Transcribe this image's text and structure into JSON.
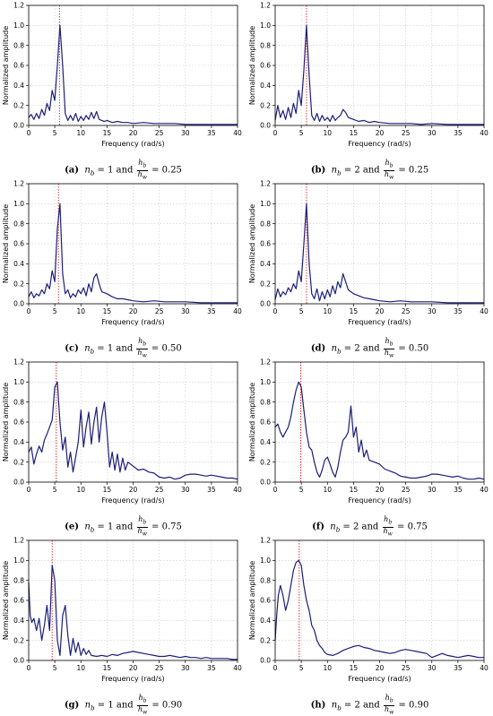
{
  "chart_data": [
    {
      "id": "a",
      "type": "line",
      "label": "(a)",
      "nb": "1",
      "ratio": "0.25",
      "xlabel": "Frequency (rad/s)",
      "ylabel": "Normalized amplitude",
      "xlim": [
        0,
        40
      ],
      "ylim": [
        0,
        1.2
      ],
      "xticks": [
        0,
        5,
        10,
        15,
        20,
        25,
        30,
        35,
        40
      ],
      "yticks": [
        "0.0",
        "0.2",
        "0.4",
        "0.6",
        "0.8",
        "1.0",
        "1.2"
      ],
      "grid": true,
      "peak_freq": 5.9,
      "x": [
        0,
        0.5,
        1,
        1.5,
        2,
        2.5,
        3,
        3.5,
        4,
        4.5,
        5,
        5.5,
        6,
        6.5,
        7,
        7.5,
        8,
        8.5,
        9,
        9.5,
        10,
        10.5,
        11,
        11.5,
        12,
        12.5,
        13,
        13.5,
        14,
        14.5,
        15,
        16,
        17,
        18,
        19,
        20,
        22,
        24,
        26,
        28,
        30,
        33,
        36,
        40
      ],
      "y": [
        0.08,
        0.11,
        0.06,
        0.12,
        0.07,
        0.16,
        0.1,
        0.22,
        0.15,
        0.35,
        0.25,
        0.6,
        1.0,
        0.6,
        0.12,
        0.05,
        0.1,
        0.05,
        0.12,
        0.04,
        0.09,
        0.05,
        0.1,
        0.06,
        0.13,
        0.07,
        0.14,
        0.06,
        0.05,
        0.04,
        0.05,
        0.03,
        0.04,
        0.03,
        0.03,
        0.02,
        0.03,
        0.02,
        0.02,
        0.02,
        0.01,
        0.01,
        0.01,
        0.01
      ]
    },
    {
      "id": "b",
      "type": "line",
      "label": "(b)",
      "nb": "2",
      "ratio": "0.25",
      "xlabel": "Frequency (rad/s)",
      "ylabel": "Normalized amplitude",
      "xlim": [
        0,
        40
      ],
      "ylim": [
        0,
        1.2
      ],
      "xticks": [
        0,
        5,
        10,
        15,
        20,
        25,
        30,
        35,
        40
      ],
      "yticks": [
        "0.0",
        "0.2",
        "0.4",
        "0.6",
        "0.8",
        "1.0",
        "1.2"
      ],
      "grid": true,
      "peak_freq": 6.0,
      "x": [
        0,
        0.5,
        1,
        1.5,
        2,
        2.5,
        3,
        3.5,
        4,
        4.5,
        5,
        5.5,
        6,
        6.5,
        7,
        7.5,
        8,
        8.5,
        9,
        9.5,
        10,
        10.5,
        11,
        11.5,
        12,
        12.5,
        13,
        13.5,
        14,
        15,
        16,
        17,
        18,
        19,
        20,
        22,
        24,
        26,
        28,
        30,
        33,
        36,
        40
      ],
      "y": [
        0.05,
        0.2,
        0.08,
        0.15,
        0.06,
        0.18,
        0.08,
        0.22,
        0.12,
        0.35,
        0.2,
        0.55,
        1.0,
        0.5,
        0.1,
        0.05,
        0.12,
        0.04,
        0.1,
        0.05,
        0.08,
        0.04,
        0.1,
        0.05,
        0.08,
        0.1,
        0.16,
        0.13,
        0.08,
        0.06,
        0.04,
        0.05,
        0.03,
        0.04,
        0.03,
        0.02,
        0.02,
        0.02,
        0.01,
        0.02,
        0.01,
        0.01,
        0.01
      ]
    },
    {
      "id": "c",
      "type": "line",
      "label": "(c)",
      "nb": "1",
      "ratio": "0.50",
      "xlabel": "Frequency (rad/s)",
      "ylabel": "Normalized amplitude",
      "xlim": [
        0,
        40
      ],
      "ylim": [
        0,
        1.2
      ],
      "xticks": [
        0,
        5,
        10,
        15,
        20,
        25,
        30,
        35,
        40
      ],
      "yticks": [
        "0.0",
        "0.2",
        "0.4",
        "0.6",
        "0.8",
        "1.0",
        "1.2"
      ],
      "grid": true,
      "peak_freq": 5.7,
      "x": [
        0,
        0.5,
        1,
        1.5,
        2,
        2.5,
        3,
        3.5,
        4,
        4.5,
        5,
        5.5,
        6,
        6.5,
        7,
        7.5,
        8,
        8.5,
        9,
        9.5,
        10,
        10.5,
        11,
        11.5,
        12,
        12.5,
        13,
        13.5,
        14,
        15,
        16,
        17,
        18,
        19,
        20,
        22,
        24,
        26,
        28,
        30,
        33,
        36,
        40
      ],
      "y": [
        0.07,
        0.12,
        0.06,
        0.1,
        0.08,
        0.14,
        0.1,
        0.2,
        0.15,
        0.33,
        0.22,
        0.75,
        1.0,
        0.3,
        0.1,
        0.14,
        0.06,
        0.1,
        0.07,
        0.14,
        0.1,
        0.16,
        0.08,
        0.2,
        0.12,
        0.26,
        0.3,
        0.2,
        0.12,
        0.1,
        0.07,
        0.05,
        0.05,
        0.04,
        0.03,
        0.02,
        0.03,
        0.02,
        0.02,
        0.02,
        0.01,
        0.01,
        0.01
      ]
    },
    {
      "id": "d",
      "type": "line",
      "label": "(d)",
      "nb": "2",
      "ratio": "0.50",
      "xlabel": "Frequency (rad/s)",
      "ylabel": "Normalized amplitude",
      "xlim": [
        0,
        40
      ],
      "ylim": [
        0,
        1.2
      ],
      "xticks": [
        0,
        5,
        10,
        15,
        20,
        25,
        30,
        35,
        40
      ],
      "yticks": [
        "0.0",
        "0.2",
        "0.4",
        "0.6",
        "0.8",
        "1.0",
        "1.2"
      ],
      "grid": true,
      "peak_freq": 6.0,
      "x": [
        0,
        0.5,
        1,
        1.5,
        2,
        2.5,
        3,
        3.5,
        4,
        4.5,
        5,
        5.5,
        6,
        6.5,
        7,
        7.5,
        8,
        8.5,
        9,
        9.5,
        10,
        10.5,
        11,
        11.5,
        12,
        12.5,
        13,
        13.5,
        14,
        15,
        16,
        17,
        18,
        19,
        20,
        22,
        24,
        26,
        28,
        30,
        33,
        36,
        40
      ],
      "y": [
        0.04,
        0.15,
        0.07,
        0.12,
        0.09,
        0.16,
        0.12,
        0.2,
        0.15,
        0.33,
        0.22,
        0.6,
        1.0,
        0.4,
        0.1,
        0.05,
        0.15,
        0.03,
        0.12,
        0.05,
        0.14,
        0.07,
        0.18,
        0.1,
        0.22,
        0.16,
        0.3,
        0.22,
        0.14,
        0.1,
        0.08,
        0.06,
        0.05,
        0.04,
        0.03,
        0.02,
        0.03,
        0.02,
        0.02,
        0.02,
        0.01,
        0.01,
        0.01
      ]
    },
    {
      "id": "e",
      "type": "line",
      "label": "(e)",
      "nb": "1",
      "ratio": "0.75",
      "xlabel": "Frequency (rad/s)",
      "ylabel": "Normalized amplitude",
      "xlim": [
        0,
        40
      ],
      "ylim": [
        0,
        1.2
      ],
      "xticks": [
        0,
        5,
        10,
        15,
        20,
        25,
        30,
        35,
        40
      ],
      "yticks": [
        "0.0",
        "0.2",
        "0.4",
        "0.6",
        "0.8",
        "1.0",
        "1.2"
      ],
      "grid": true,
      "peak_freq": 5.3,
      "x": [
        0,
        0.5,
        1,
        1.5,
        2,
        2.5,
        3,
        3.5,
        4,
        4.5,
        5,
        5.5,
        6,
        6.5,
        7,
        7.5,
        8,
        8.5,
        9,
        9.5,
        10,
        10.5,
        11,
        11.5,
        12,
        12.5,
        13,
        13.5,
        14,
        14.5,
        15,
        15.5,
        16,
        16.5,
        17,
        17.5,
        18,
        18.5,
        19,
        20,
        21,
        22,
        23,
        24,
        25,
        26,
        27,
        28,
        29,
        30,
        31,
        32,
        33,
        34,
        35,
        36,
        37,
        38,
        39,
        40
      ],
      "y": [
        0.3,
        0.35,
        0.18,
        0.28,
        0.36,
        0.3,
        0.42,
        0.48,
        0.55,
        0.62,
        0.95,
        1.0,
        0.6,
        0.32,
        0.45,
        0.15,
        0.3,
        0.1,
        0.25,
        0.4,
        0.72,
        0.35,
        0.55,
        0.7,
        0.38,
        0.6,
        0.75,
        0.4,
        0.65,
        0.8,
        0.5,
        0.15,
        0.3,
        0.12,
        0.28,
        0.1,
        0.24,
        0.12,
        0.2,
        0.16,
        0.12,
        0.13,
        0.1,
        0.09,
        0.05,
        0.04,
        0.05,
        0.03,
        0.04,
        0.07,
        0.08,
        0.08,
        0.07,
        0.06,
        0.07,
        0.06,
        0.05,
        0.04,
        0.04,
        0.03
      ]
    },
    {
      "id": "f",
      "type": "line",
      "label": "(f)",
      "nb": "2",
      "ratio": "0.75",
      "xlabel": "Frequency (rad/s)",
      "ylabel": "Normalized amplitude",
      "xlim": [
        0,
        40
      ],
      "ylim": [
        0,
        1.2
      ],
      "xticks": [
        0,
        5,
        10,
        15,
        20,
        25,
        30,
        35,
        40
      ],
      "yticks": [
        "0.0",
        "0.2",
        "0.4",
        "0.6",
        "0.8",
        "1.0",
        "1.2"
      ],
      "grid": true,
      "peak_freq": 4.9,
      "x": [
        0,
        0.5,
        1,
        1.5,
        2,
        2.5,
        3,
        3.5,
        4,
        4.5,
        5,
        5.5,
        6,
        6.5,
        7,
        7.5,
        8,
        8.5,
        9,
        9.5,
        10,
        10.5,
        11,
        11.5,
        12,
        12.5,
        13,
        13.5,
        14,
        14.5,
        15,
        15.5,
        16,
        16.5,
        17,
        17.5,
        18,
        19,
        20,
        21,
        22,
        23,
        24,
        25,
        26,
        27,
        28,
        29,
        30,
        31,
        32,
        33,
        34,
        35,
        36,
        37,
        38,
        39,
        40
      ],
      "y": [
        0.55,
        0.58,
        0.5,
        0.45,
        0.5,
        0.55,
        0.65,
        0.8,
        0.92,
        1.0,
        0.95,
        0.72,
        0.5,
        0.35,
        0.32,
        0.2,
        0.1,
        0.05,
        0.12,
        0.22,
        0.25,
        0.18,
        0.1,
        0.05,
        0.15,
        0.3,
        0.42,
        0.45,
        0.5,
        0.76,
        0.45,
        0.55,
        0.3,
        0.42,
        0.25,
        0.32,
        0.22,
        0.2,
        0.18,
        0.13,
        0.11,
        0.09,
        0.06,
        0.05,
        0.04,
        0.04,
        0.05,
        0.06,
        0.08,
        0.08,
        0.07,
        0.06,
        0.05,
        0.06,
        0.04,
        0.03,
        0.03,
        0.04,
        0.03
      ]
    },
    {
      "id": "g",
      "type": "line",
      "label": "(g)",
      "nb": "1",
      "ratio": "0.90",
      "xlabel": "Frequency (rad/s)",
      "ylabel": "Normalized amplitude",
      "xlim": [
        0,
        40
      ],
      "ylim": [
        0,
        1.2
      ],
      "xticks": [
        0,
        5,
        10,
        15,
        20,
        25,
        30,
        35,
        40
      ],
      "yticks": [
        "0.0",
        "0.2",
        "0.4",
        "0.6",
        "0.8",
        "1.0",
        "1.2"
      ],
      "grid": true,
      "peak_freq": 4.5,
      "x": [
        0,
        0.3,
        0.6,
        1,
        1.5,
        2,
        2.5,
        3,
        3.5,
        4,
        4.5,
        5,
        5.5,
        6,
        6.5,
        7,
        7.5,
        8,
        8.5,
        9,
        9.5,
        10,
        10.5,
        11,
        11.5,
        12,
        13,
        14,
        15,
        16,
        17,
        18,
        19,
        20,
        21,
        22,
        23,
        24,
        25,
        26,
        27,
        28,
        29,
        30,
        31,
        32,
        33,
        34,
        35,
        36,
        37,
        38,
        39,
        40
      ],
      "y": [
        0.78,
        0.45,
        0.38,
        0.42,
        0.3,
        0.42,
        0.2,
        0.35,
        0.55,
        0.3,
        0.95,
        0.8,
        0.2,
        0.05,
        0.45,
        0.55,
        0.25,
        0.05,
        0.22,
        0.08,
        0.18,
        0.05,
        0.12,
        0.06,
        0.1,
        0.05,
        0.04,
        0.05,
        0.04,
        0.06,
        0.05,
        0.07,
        0.08,
        0.09,
        0.08,
        0.07,
        0.06,
        0.05,
        0.04,
        0.04,
        0.05,
        0.04,
        0.03,
        0.04,
        0.03,
        0.03,
        0.02,
        0.03,
        0.02,
        0.02,
        0.02,
        0.02,
        0.01,
        0.01
      ]
    },
    {
      "id": "h",
      "type": "line",
      "label": "(h)",
      "nb": "2",
      "ratio": "0.90",
      "xlabel": "Frequency (rad/s)",
      "ylabel": "Normalized amplitude",
      "xlim": [
        0,
        40
      ],
      "ylim": [
        0,
        1.2
      ],
      "xticks": [
        0,
        5,
        10,
        15,
        20,
        25,
        30,
        35,
        40
      ],
      "yticks": [
        "0.0",
        "0.2",
        "0.4",
        "0.6",
        "0.8",
        "1.0",
        "1.2"
      ],
      "grid": true,
      "peak_freq": 4.6,
      "x": [
        0,
        0.3,
        0.6,
        1,
        1.5,
        2,
        2.5,
        3,
        3.5,
        4,
        4.5,
        5,
        5.5,
        6,
        6.5,
        7,
        7.5,
        8,
        8.5,
        9,
        9.5,
        10,
        11,
        12,
        13,
        14,
        15,
        16,
        17,
        18,
        19,
        20,
        21,
        22,
        23,
        24,
        25,
        26,
        27,
        28,
        29,
        30,
        31,
        32,
        33,
        34,
        35,
        36,
        37,
        38,
        39,
        40
      ],
      "y": [
        0.2,
        0.45,
        0.65,
        0.75,
        0.65,
        0.5,
        0.6,
        0.75,
        0.9,
        0.98,
        1.0,
        0.95,
        0.75,
        0.6,
        0.5,
        0.35,
        0.3,
        0.2,
        0.15,
        0.12,
        0.08,
        0.06,
        0.05,
        0.07,
        0.1,
        0.12,
        0.14,
        0.15,
        0.13,
        0.12,
        0.1,
        0.09,
        0.08,
        0.07,
        0.08,
        0.1,
        0.11,
        0.1,
        0.09,
        0.08,
        0.07,
        0.03,
        0.05,
        0.07,
        0.05,
        0.04,
        0.03,
        0.04,
        0.05,
        0.04,
        0.03,
        0.03
      ]
    }
  ]
}
